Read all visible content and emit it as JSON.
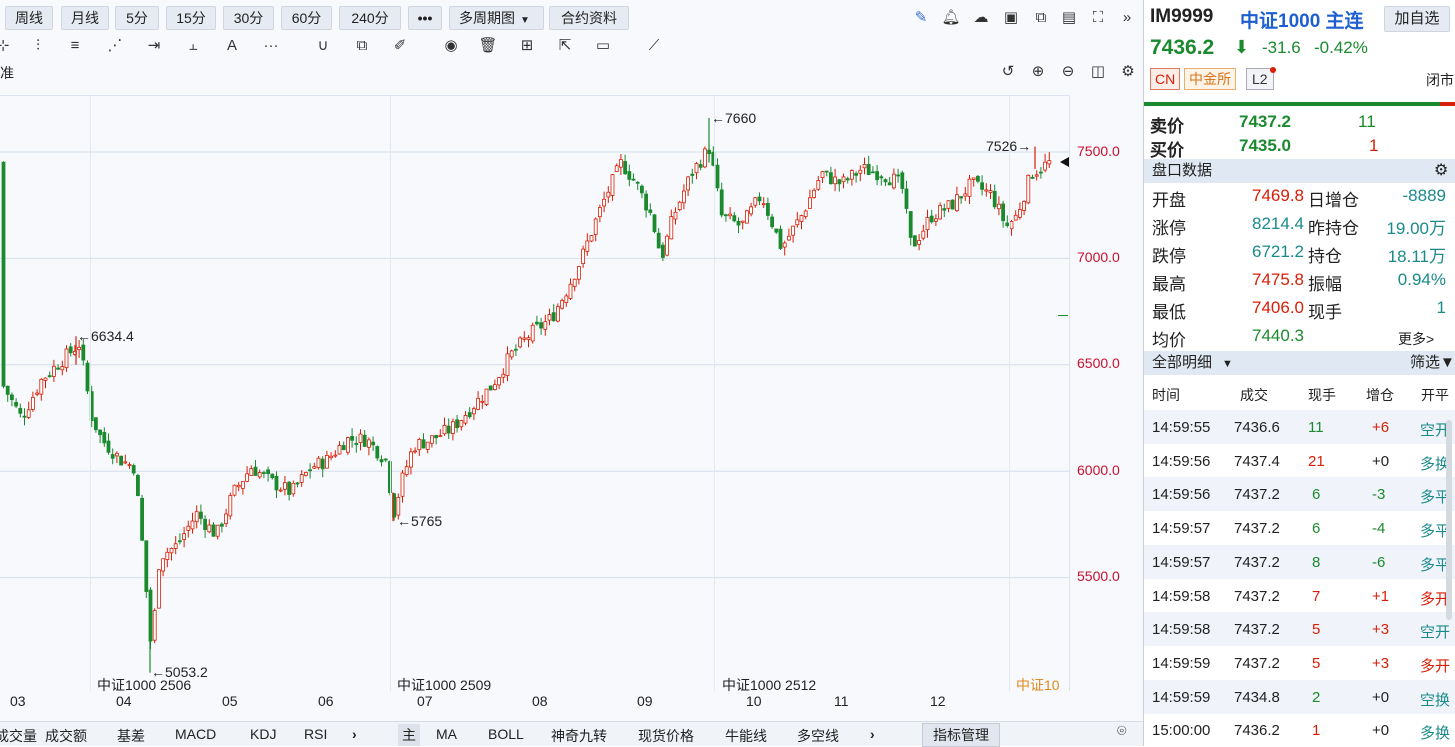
{
  "toolbar": {
    "periods": [
      "周线",
      "月线",
      "5分",
      "15分",
      "30分",
      "60分",
      "240分"
    ],
    "more": "•••",
    "multi_period": "多周期图",
    "contract_info": "合约资料"
  },
  "drawtools": {
    "text_tool": "A",
    "more": "···"
  },
  "chart_top_label": "准",
  "chart_data": {
    "type": "candlestick",
    "ylim": [
      5000,
      7700
    ],
    "y_ticks": [
      "7500.0",
      "7000.0",
      "6500.0",
      "6000.0",
      "5500.0"
    ],
    "x_ticks": [
      "03",
      "04",
      "05",
      "06",
      "07",
      "08",
      "09",
      "10",
      "11",
      "12"
    ],
    "contracts": [
      "中证1000 2506",
      "中证1000 2509",
      "中证1000 2512",
      "中证10"
    ],
    "annotations": [
      {
        "text": "←6634.4",
        "value": 6634.4
      },
      {
        "text": "←5053.2",
        "value": 5053.2
      },
      {
        "text": "←5765",
        "value": 5765
      },
      {
        "text": "←7660",
        "value": 7660
      },
      {
        "text": "7526→",
        "value": 7526
      }
    ],
    "up_color": "#d81e06",
    "down_color": "#1b8a2e"
  },
  "bottom_tabs_left": [
    "成交量",
    "成交额",
    "基差",
    "MACD",
    "KDJ",
    "RSI"
  ],
  "bottom_tabs_right": [
    "主",
    "MA",
    "BOLL",
    "神奇九转",
    "现货价格",
    "牛能线",
    "多空线"
  ],
  "indicator_manage": "指标管理",
  "side": {
    "code": "IM9999",
    "name": "中证1000 主连",
    "add_fav": "加自选",
    "price": "7436.2",
    "arrow": "⬇",
    "change": "-31.6",
    "change_pct": "-0.42%",
    "tags": [
      "CN",
      "中金所",
      "L2"
    ],
    "status": "闭市",
    "ask_label": "卖价",
    "ask_price": "7437.2",
    "ask_vol": "11",
    "bid_label": "买价",
    "bid_price": "7435.0",
    "bid_vol": "1",
    "panel_title": "盘口数据",
    "stats": [
      {
        "l1": "开盘",
        "v1": "7469.8",
        "l2": "日增仓",
        "v2": "-8889"
      },
      {
        "l1": "涨停",
        "v1": "8214.4",
        "l2": "昨持仓",
        "v2": "19.00万"
      },
      {
        "l1": "跌停",
        "v1": "6721.2",
        "l2": "持仓",
        "v2": "18.11万"
      },
      {
        "l1": "最高",
        "v1": "7475.8",
        "l2": "振幅",
        "v2": "0.94%"
      },
      {
        "l1": "最低",
        "v1": "7406.0",
        "l2": "现手",
        "v2": "1"
      },
      {
        "l1": "均价",
        "v1": "7440.3",
        "l2": "",
        "v2": "更多>"
      }
    ],
    "detail_title": "全部明细",
    "filter": "筛选",
    "table_headers": [
      "时间",
      "成交",
      "现手",
      "增仓",
      "开平"
    ],
    "trades": [
      [
        "14:59:55",
        "7436.6",
        "11",
        "+6",
        "空开"
      ],
      [
        "14:59:56",
        "7437.4",
        "21",
        "+0",
        "多换"
      ],
      [
        "14:59:56",
        "7437.2",
        "6",
        "-3",
        "多平"
      ],
      [
        "14:59:57",
        "7437.2",
        "6",
        "-4",
        "多平"
      ],
      [
        "14:59:57",
        "7437.2",
        "8",
        "-6",
        "多平"
      ],
      [
        "14:59:58",
        "7437.2",
        "7",
        "+1",
        "多开"
      ],
      [
        "14:59:58",
        "7437.2",
        "5",
        "+3",
        "空开"
      ],
      [
        "14:59:59",
        "7437.2",
        "5",
        "+3",
        "多开"
      ],
      [
        "14:59:59",
        "7434.8",
        "2",
        "+0",
        "空换"
      ],
      [
        "15:00:00",
        "7436.2",
        "1",
        "+0",
        "多换"
      ]
    ]
  }
}
